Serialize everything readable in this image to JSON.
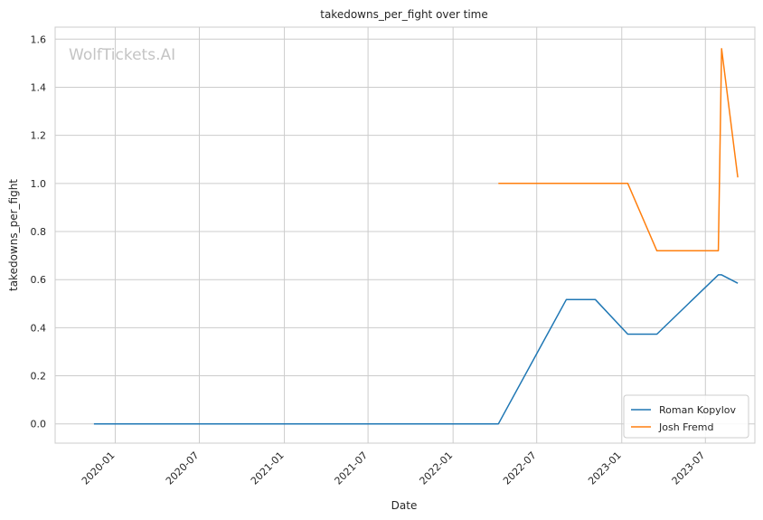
{
  "chart_data": {
    "type": "line",
    "title": "takedowns_per_fight over time",
    "xlabel": "Date",
    "ylabel": "takedowns_per_fight",
    "watermark": "WolfTickets.AI",
    "x_ticks": [
      "2020-01",
      "2020-07",
      "2021-01",
      "2021-07",
      "2022-01",
      "2022-07",
      "2023-01",
      "2023-07"
    ],
    "y_ticks": [
      "0.0",
      "0.2",
      "0.4",
      "0.6",
      "0.8",
      "1.0",
      "1.2",
      "1.4",
      "1.6"
    ],
    "xlim": [
      "2019-08-24",
      "2023-10-16"
    ],
    "ylim": [
      -0.08,
      1.65
    ],
    "grid": true,
    "legend_position": "bottom-right",
    "series": [
      {
        "name": "Roman Kopylov",
        "color": "#1f77b4",
        "points": [
          {
            "x": "2019-11-16",
            "y": 0.0
          },
          {
            "x": "2022-04-09",
            "y": 0.0
          },
          {
            "x": "2022-09-03",
            "y": 0.517
          },
          {
            "x": "2022-11-05",
            "y": 0.517
          },
          {
            "x": "2023-01-14",
            "y": 0.373
          },
          {
            "x": "2023-03-18",
            "y": 0.373
          },
          {
            "x": "2023-07-29",
            "y": 0.62
          },
          {
            "x": "2023-08-05",
            "y": 0.62
          },
          {
            "x": "2023-09-09",
            "y": 0.585
          }
        ]
      },
      {
        "name": "Josh Fremd",
        "color": "#ff7f0e",
        "points": [
          {
            "x": "2022-04-09",
            "y": 1.0
          },
          {
            "x": "2023-01-14",
            "y": 1.0
          },
          {
            "x": "2023-03-18",
            "y": 0.72
          },
          {
            "x": "2023-07-29",
            "y": 0.72
          },
          {
            "x": "2023-08-05",
            "y": 1.56
          },
          {
            "x": "2023-09-09",
            "y": 1.025
          }
        ]
      }
    ]
  }
}
